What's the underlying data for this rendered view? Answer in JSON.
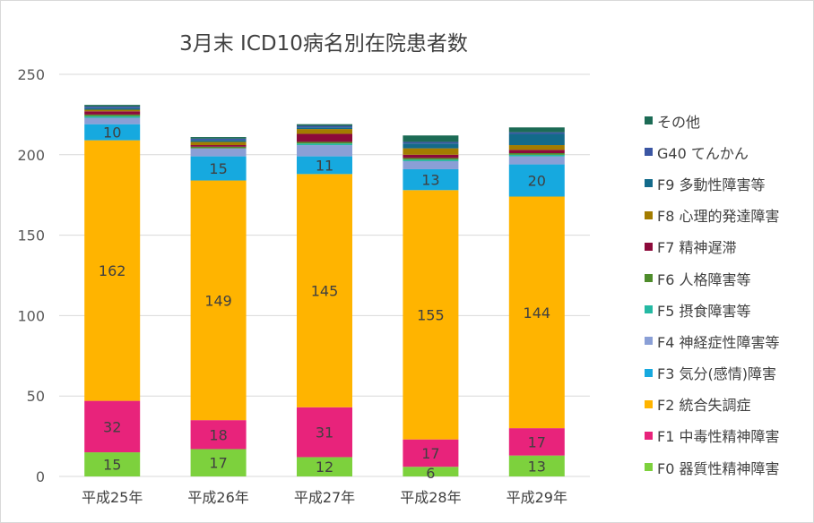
{
  "chart_data": {
    "type": "stacked-bar",
    "title": "3月末 ICD10病名別在院患者数",
    "categories": [
      "平成25年",
      "平成26年",
      "平成27年",
      "平成28年",
      "平成29年"
    ],
    "ylim": [
      0,
      250
    ],
    "yticks": [
      0,
      50,
      100,
      150,
      200,
      250
    ],
    "grid": true,
    "legend_position": "right",
    "series": [
      {
        "name": "F0 器質性精神障害",
        "color": "#7dd13d",
        "values": [
          15,
          17,
          12,
          6,
          13
        ]
      },
      {
        "name": "F1 中毒性精神障害",
        "color": "#e8237b",
        "values": [
          32,
          18,
          31,
          17,
          17
        ]
      },
      {
        "name": "F2 統合失調症",
        "color": "#ffb400",
        "values": [
          162,
          149,
          145,
          155,
          144
        ]
      },
      {
        "name": "F3 気分(感情)障害",
        "color": "#16a9df",
        "values": [
          10,
          15,
          11,
          13,
          20
        ]
      },
      {
        "name": "F4 神経症性障害等",
        "color": "#8a9fd6",
        "values": [
          4,
          5,
          7,
          5,
          5
        ]
      },
      {
        "name": "F5 摂食障害等",
        "color": "#25b9a3",
        "values": [
          1,
          0,
          1,
          1,
          1
        ]
      },
      {
        "name": "F6 人格障害等",
        "color": "#4e8c2b",
        "values": [
          1,
          1,
          1,
          1,
          1
        ]
      },
      {
        "name": "F7 精神遅滞",
        "color": "#8c0a3a",
        "values": [
          2,
          1,
          5,
          2,
          2
        ]
      },
      {
        "name": "F8 心理的発達障害",
        "color": "#a37c00",
        "values": [
          1,
          2,
          3,
          4,
          3
        ]
      },
      {
        "name": "F9 多動性障害等",
        "color": "#136a8a",
        "values": [
          1,
          1,
          1,
          3,
          7
        ]
      },
      {
        "name": "G40 てんかん",
        "color": "#3b56a3",
        "values": [
          1,
          1,
          1,
          1,
          1
        ]
      },
      {
        "name": "その他",
        "color": "#1c6b55",
        "values": [
          1,
          1,
          1,
          4,
          3
        ]
      }
    ],
    "data_labels": [
      {
        "series": 0,
        "text": [
          "15",
          "17",
          "12",
          "6",
          "13"
        ]
      },
      {
        "series": 1,
        "text": [
          "32",
          "18",
          "31",
          "17",
          "17"
        ]
      },
      {
        "series": 2,
        "text": [
          "162",
          "149",
          "145",
          "155",
          "144"
        ]
      },
      {
        "series": 3,
        "text": [
          "10",
          "15",
          "11",
          "13",
          "20"
        ]
      }
    ]
  }
}
